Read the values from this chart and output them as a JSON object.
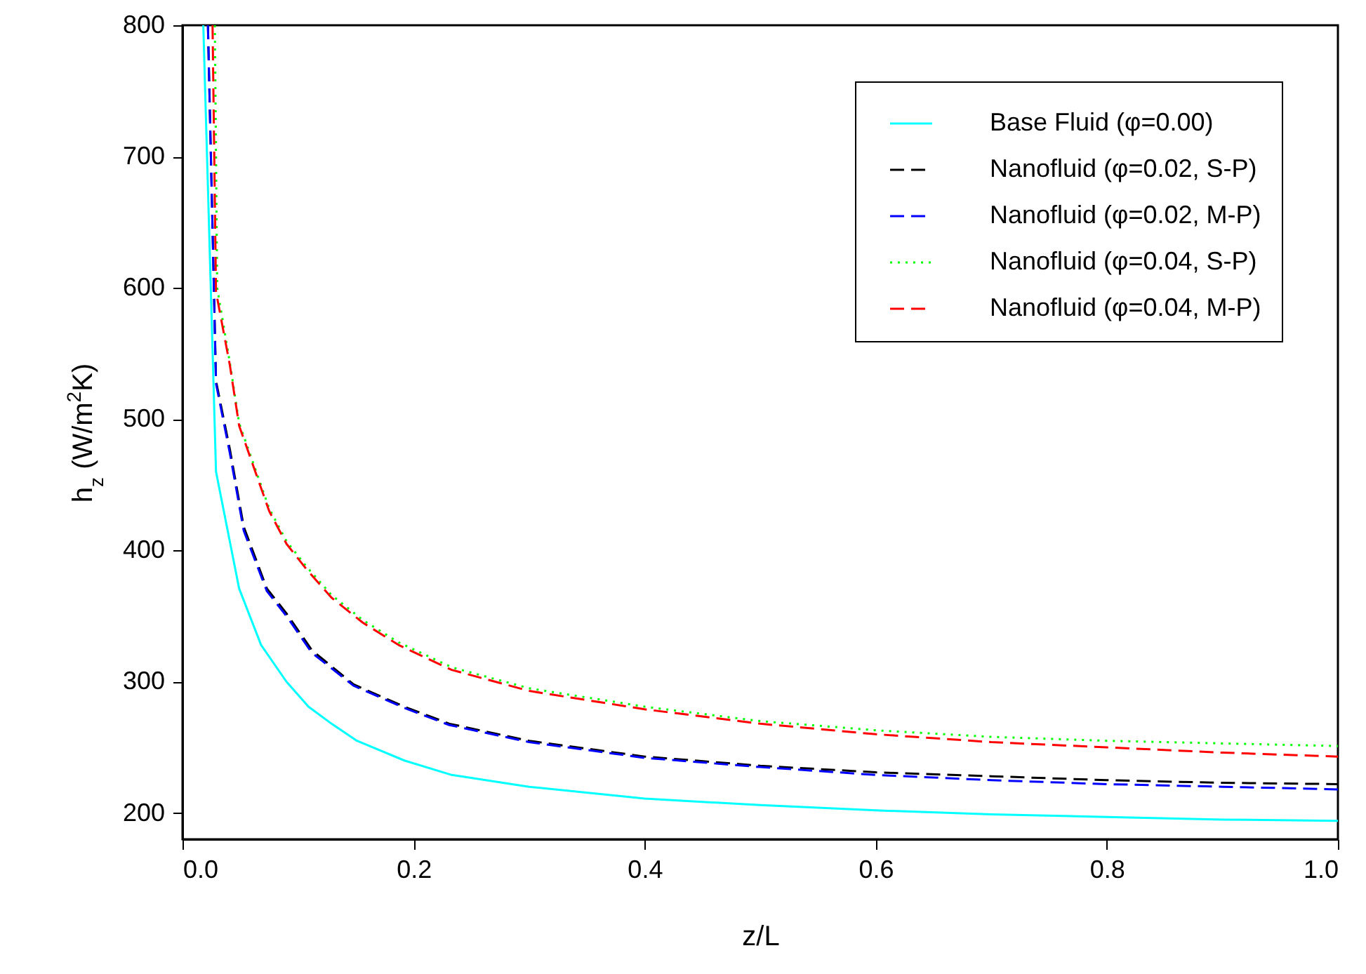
{
  "chart_data": {
    "type": "line",
    "xlabel": "z/L",
    "ylabel": "h$_{z}$ (W/m$^{2}$K)",
    "xlim": [
      0,
      1
    ],
    "ylim": [
      180,
      800
    ],
    "xticks": [
      {
        "value": 0,
        "label": "0.0"
      },
      0.2,
      0.4,
      0.6,
      0.8,
      {
        "value": 1,
        "label": "1.0"
      }
    ],
    "yticks": [
      200,
      300,
      400,
      500,
      600,
      700,
      800
    ],
    "legend": "top right",
    "grid": false,
    "marker": "none",
    "series": [
      {
        "name": "Base Fluid (φ=0.00)",
        "color": "#00ffff",
        "line_style": "solid",
        "x": [
          0.018,
          0.029,
          0.049,
          0.068,
          0.09,
          0.109,
          0.129,
          0.151,
          0.192,
          0.233,
          0.3,
          0.4,
          0.5,
          0.6,
          0.7,
          0.8,
          0.9,
          1.0
        ],
        "values": [
          800,
          460,
          371,
          328,
          300,
          281,
          268,
          255,
          240,
          229,
          220,
          211,
          206,
          202,
          199,
          197,
          195,
          194
        ]
      },
      {
        "name": "Nanofluid (φ=0.02, S-P)",
        "color": "#000000",
        "line_style": "dashed",
        "x": [
          0.022,
          0.029,
          0.041,
          0.053,
          0.073,
          0.09,
          0.112,
          0.148,
          0.192,
          0.231,
          0.3,
          0.4,
          0.5,
          0.6,
          0.7,
          0.8,
          0.9,
          1.0
        ],
        "values": [
          800,
          529,
          477,
          418,
          371,
          352,
          324,
          298,
          281,
          268,
          255,
          243,
          236,
          231,
          228,
          225,
          223,
          222
        ]
      },
      {
        "name": "Nanofluid (φ=0.02, M-P)",
        "color": "#0000ff",
        "line_style": "dashed",
        "x": [
          0.022,
          0.029,
          0.041,
          0.053,
          0.073,
          0.09,
          0.112,
          0.148,
          0.192,
          0.231,
          0.3,
          0.4,
          0.5,
          0.6,
          0.7,
          0.8,
          0.9,
          1.0
        ],
        "values": [
          800,
          527,
          474,
          415,
          369,
          350,
          322,
          297,
          280,
          267,
          254,
          242,
          235,
          229,
          225,
          222,
          220,
          218
        ]
      },
      {
        "name": "Nanofluid (φ=0.04, S-P)",
        "color": "#00ff00",
        "line_style": "dotted",
        "x": [
          0.028,
          0.03,
          0.041,
          0.049,
          0.061,
          0.075,
          0.09,
          0.107,
          0.129,
          0.156,
          0.187,
          0.233,
          0.3,
          0.4,
          0.5,
          0.6,
          0.7,
          0.8,
          0.9,
          1.0
        ],
        "values": [
          800,
          600,
          543,
          497,
          467,
          432,
          407,
          388,
          366,
          347,
          330,
          311,
          295,
          281,
          270,
          263,
          258,
          255,
          253,
          251
        ]
      },
      {
        "name": "Nanofluid (φ=0.04, M-P)",
        "color": "#ff0000",
        "line_style": "dashed",
        "x": [
          0.026,
          0.029,
          0.041,
          0.049,
          0.061,
          0.075,
          0.09,
          0.107,
          0.129,
          0.156,
          0.187,
          0.233,
          0.3,
          0.4,
          0.5,
          0.6,
          0.7,
          0.8,
          0.9,
          1.0
        ],
        "values": [
          800,
          597,
          541,
          495,
          465,
          430,
          405,
          386,
          364,
          345,
          328,
          309,
          293,
          279,
          268,
          260,
          254,
          250,
          246,
          243
        ]
      }
    ]
  }
}
